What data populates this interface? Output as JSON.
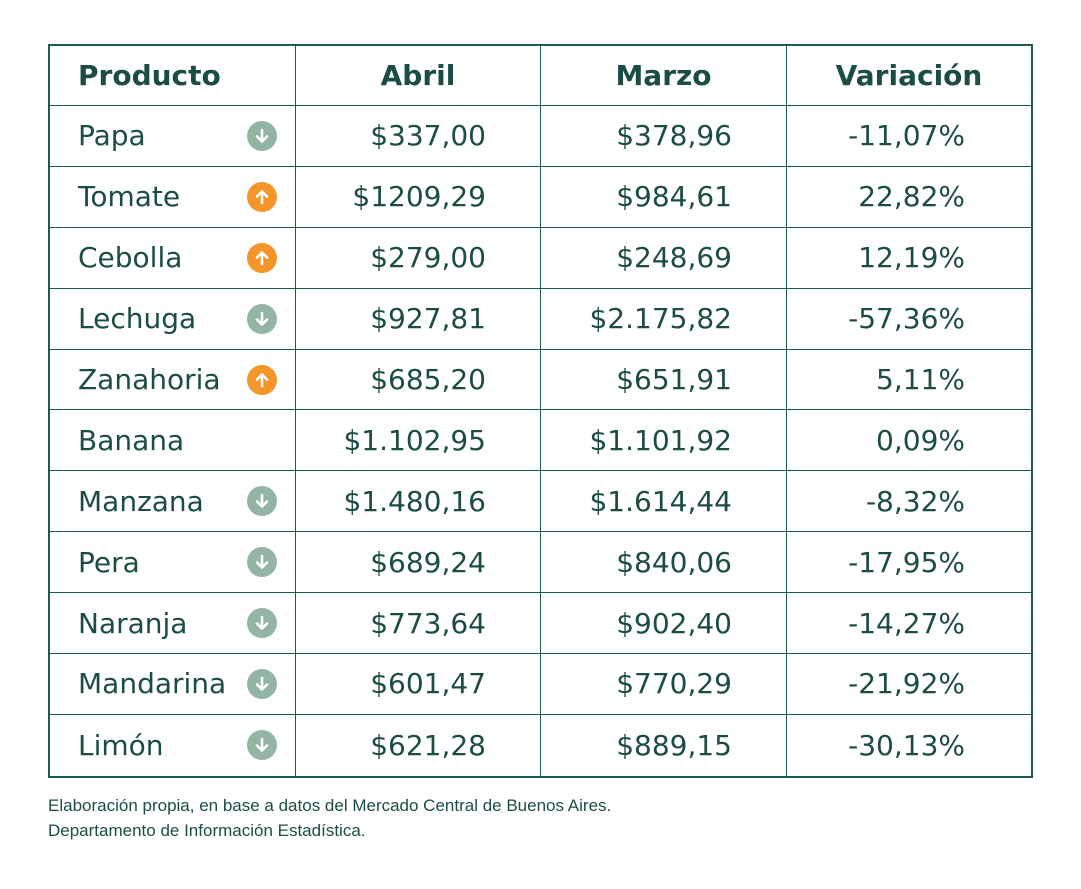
{
  "headers": [
    "Producto",
    "Abril",
    "Marzo",
    "Variación"
  ],
  "rows": [
    {
      "producto": "Papa",
      "abril": "$337,00",
      "marzo": "$378,96",
      "variacion": "-11,07%",
      "trend": "down"
    },
    {
      "producto": "Tomate",
      "abril": "$1209,29",
      "marzo": "$984,61",
      "variacion": "22,82%",
      "trend": "up"
    },
    {
      "producto": "Cebolla",
      "abril": "$279,00",
      "marzo": "$248,69",
      "variacion": "12,19%",
      "trend": "up"
    },
    {
      "producto": "Lechuga",
      "abril": "$927,81",
      "marzo": "$2.175,82",
      "variacion": "-57,36%",
      "trend": "down"
    },
    {
      "producto": "Zanahoria",
      "abril": "$685,20",
      "marzo": "$651,91",
      "variacion": "5,11%",
      "trend": "up"
    },
    {
      "producto": "Banana",
      "abril": "$1.102,95",
      "marzo": "$1.101,92",
      "variacion": "0,09%",
      "trend": "none"
    },
    {
      "producto": "Manzana",
      "abril": "$1.480,16",
      "marzo": "$1.614,44",
      "variacion": "-8,32%",
      "trend": "down"
    },
    {
      "producto": "Pera",
      "abril": "$689,24",
      "marzo": "$840,06",
      "variacion": "-17,95%",
      "trend": "down"
    },
    {
      "producto": "Naranja",
      "abril": "$773,64",
      "marzo": "$902,40",
      "variacion": "-14,27%",
      "trend": "down"
    },
    {
      "producto": "Mandarina",
      "abril": "$601,47",
      "marzo": "$770,29",
      "variacion": "-21,92%",
      "trend": "down"
    },
    {
      "producto": "Limón",
      "abril": "$621,28",
      "marzo": "$889,15",
      "variacion": "-30,13%",
      "trend": "down"
    }
  ],
  "colors": {
    "border": "#1d5a50",
    "text": "#1b4d45",
    "up_arrow": "#f5962a",
    "down_arrow": "#94b5a4"
  },
  "icons": {
    "up": "arrow-up-circle-icon",
    "down": "arrow-down-circle-icon"
  },
  "footnote": {
    "line1": "Elaboración propia, en base a datos del Mercado Central de Buenos Aires.",
    "line2": "Departamento de Información Estadística."
  }
}
